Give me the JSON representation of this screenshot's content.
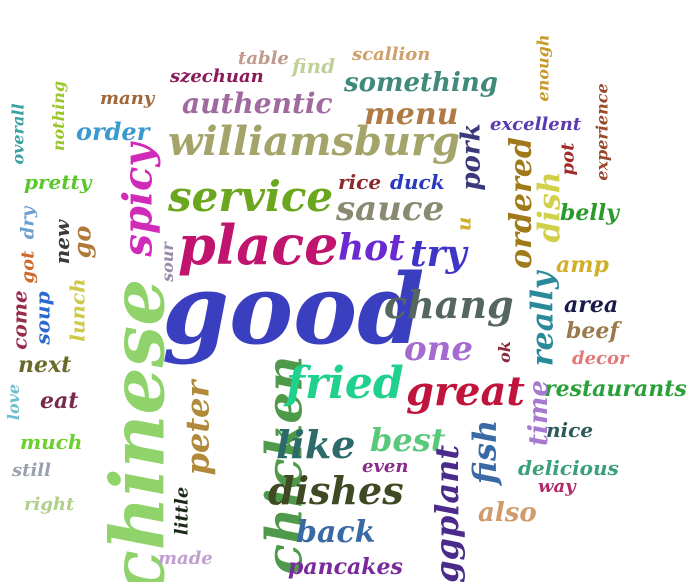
{
  "words": [
    {
      "key": "good",
      "text": "good",
      "color": "#3a3fbf"
    },
    {
      "key": "chinese",
      "text": "chinese",
      "color": "#8fd36a"
    },
    {
      "key": "place",
      "text": "place",
      "color": "#c0146f"
    },
    {
      "key": "chicken",
      "text": "chicken",
      "color": "#4f9a4a"
    },
    {
      "key": "williamsburg",
      "text": "williamsburg",
      "color": "#a3a36a"
    },
    {
      "key": "service",
      "text": "service",
      "color": "#6aa61e"
    },
    {
      "key": "fried",
      "text": "fried",
      "color": "#1fd18c"
    },
    {
      "key": "spicy",
      "text": "spicy",
      "color": "#d02ab8"
    },
    {
      "key": "great",
      "text": "great",
      "color": "#c0143c"
    },
    {
      "key": "chang",
      "text": "chang",
      "color": "#556660"
    },
    {
      "key": "dishes",
      "text": "dishes",
      "color": "#3f4a24"
    },
    {
      "key": "like",
      "text": "like",
      "color": "#2d6a6a"
    },
    {
      "key": "sauce",
      "text": "sauce",
      "color": "#8a8a72"
    },
    {
      "key": "hot",
      "text": "hot",
      "color": "#6a2ad0"
    },
    {
      "key": "try",
      "text": "try",
      "color": "#3f35c8"
    },
    {
      "key": "one",
      "text": "one",
      "color": "#a46ad0"
    },
    {
      "key": "authentic",
      "text": "authentic",
      "color": "#a06aa0"
    },
    {
      "key": "something",
      "text": "something",
      "color": "#3f8a7a"
    },
    {
      "key": "menu",
      "text": "menu",
      "color": "#b07a44"
    },
    {
      "key": "best",
      "text": "best",
      "color": "#5ac87a"
    },
    {
      "key": "peter",
      "text": "peter",
      "color": "#b08a3a"
    },
    {
      "key": "eggplant",
      "text": "eggplant",
      "color": "#4a2a8a"
    },
    {
      "key": "fish",
      "text": "fish",
      "color": "#3a6aa4"
    },
    {
      "key": "back",
      "text": "back",
      "color": "#3a6aa4"
    },
    {
      "key": "ordered",
      "text": "ordered",
      "color": "#a07a1a"
    },
    {
      "key": "really",
      "text": "really",
      "color": "#2a8a9a"
    },
    {
      "key": "dish",
      "text": "dish",
      "color": "#d0d04a"
    },
    {
      "key": "pork",
      "text": "pork",
      "color": "#3a3a7a"
    },
    {
      "key": "restaurants",
      "text": "restaurants",
      "color": "#2aa03a"
    },
    {
      "key": "also",
      "text": "also",
      "color": "#d09a6a"
    },
    {
      "key": "time",
      "text": "time",
      "color": "#a67ad0"
    },
    {
      "key": "order",
      "text": "order",
      "color": "#3a9ad0"
    },
    {
      "key": "pancakes",
      "text": "pancakes",
      "color": "#7a2a9a"
    },
    {
      "key": "delicious",
      "text": "delicious",
      "color": "#3aa07a"
    },
    {
      "key": "rice",
      "text": "rice",
      "color": "#8a2a2a"
    },
    {
      "key": "duck",
      "text": "duck",
      "color": "#2a3ac0"
    },
    {
      "key": "soup",
      "text": "soup",
      "color": "#2a6ad0"
    },
    {
      "key": "lunch",
      "text": "lunch",
      "color": "#d0c84a"
    },
    {
      "key": "go",
      "text": "go",
      "color": "#b07a3a"
    },
    {
      "key": "new",
      "text": "new",
      "color": "#3a3a3a"
    },
    {
      "key": "amp",
      "text": "amp",
      "color": "#d0b02a"
    },
    {
      "key": "belly",
      "text": "belly",
      "color": "#2a9a2a"
    },
    {
      "key": "area",
      "text": "area",
      "color": "#1a1a4a"
    },
    {
      "key": "beef",
      "text": "beef",
      "color": "#9a7a4a"
    },
    {
      "key": "nice",
      "text": "nice",
      "color": "#2a5a5a"
    },
    {
      "key": "excellent",
      "text": "excellent",
      "color": "#5a3ab0"
    },
    {
      "key": "pretty",
      "text": "pretty",
      "color": "#5ac82a"
    },
    {
      "key": "much",
      "text": "much",
      "color": "#6ad02a"
    },
    {
      "key": "eat",
      "text": "eat",
      "color": "#7a2a4a"
    },
    {
      "key": "next",
      "text": "next",
      "color": "#6a6a2a"
    },
    {
      "key": "come",
      "text": "come",
      "color": "#9a2a4a"
    },
    {
      "key": "made",
      "text": "made",
      "color": "#c0a0d0"
    },
    {
      "key": "little",
      "text": "little",
      "color": "#1a2a1a"
    },
    {
      "key": "way",
      "text": "way",
      "color": "#b02a6a"
    },
    {
      "key": "even",
      "text": "even",
      "color": "#8a2a8a"
    },
    {
      "key": "decor",
      "text": "decor",
      "color": "#e07a7a"
    },
    {
      "key": "pot",
      "text": "pot",
      "color": "#a02a2a"
    },
    {
      "key": "experience",
      "text": "experience",
      "color": "#9a4a2a"
    },
    {
      "key": "enough",
      "text": "enough",
      "color": "#c89a2a"
    },
    {
      "key": "scallion",
      "text": "scallion",
      "color": "#d0a06a"
    },
    {
      "key": "table",
      "text": "table",
      "color": "#c09a8a"
    },
    {
      "key": "find",
      "text": "find",
      "color": "#c0d09a"
    },
    {
      "key": "szechuan",
      "text": "szechuan",
      "color": "#8a1a5a"
    },
    {
      "key": "many",
      "text": "many",
      "color": "#a0683a"
    },
    {
      "key": "nothing",
      "text": "nothing",
      "color": "#9ac82a"
    },
    {
      "key": "overall",
      "text": "overall",
      "color": "#3aa0a0"
    },
    {
      "key": "dry",
      "text": "dry",
      "color": "#6aa0d0"
    },
    {
      "key": "got",
      "text": "got",
      "color": "#d06a2a"
    },
    {
      "key": "sour",
      "text": "sour",
      "color": "#9a8aaa"
    },
    {
      "key": "u",
      "text": "u",
      "color": "#d0b02a"
    },
    {
      "key": "ok",
      "text": "ok",
      "color": "#8a2a3a"
    },
    {
      "key": "love",
      "text": "love",
      "color": "#6ac0d0"
    },
    {
      "key": "still",
      "text": "still",
      "color": "#9aa0b0"
    },
    {
      "key": "right",
      "text": "right",
      "color": "#b0d08a"
    }
  ]
}
